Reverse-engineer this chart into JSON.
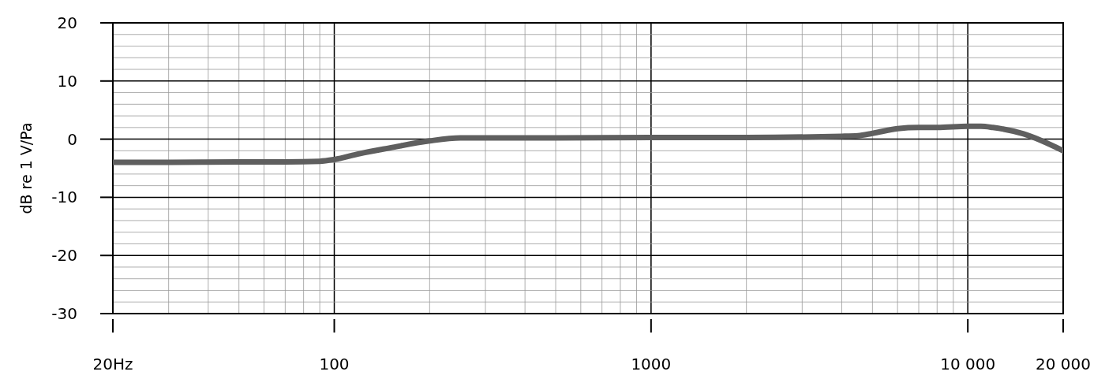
{
  "chart_data": {
    "type": "line",
    "ylabel": "dB re 1 V/Pa",
    "log": "x",
    "grid": true,
    "xlim": [
      20,
      20000
    ],
    "ylim": [
      -30,
      20
    ],
    "xticks": [
      {
        "value": 20,
        "label": "20Hz"
      },
      100,
      1000,
      {
        "value": 10000,
        "label": "10 000"
      },
      {
        "value": 20000,
        "label": "20 000"
      }
    ],
    "yticks": [
      -30,
      -20,
      -10,
      0,
      10,
      20
    ],
    "series": [
      {
        "color": "#5f5f5f",
        "x": [
          20,
          30,
          50,
          70,
          90,
          100,
          120,
          150,
          200,
          250,
          300,
          500,
          1000,
          2000,
          4000,
          4500,
          5000,
          6000,
          7000,
          8000,
          10000,
          11000,
          12000,
          15000,
          20000
        ],
        "values": [
          -4,
          -4,
          -3.9,
          -3.9,
          -3.8,
          -3.5,
          -2.5,
          -1.5,
          -0.3,
          0.2,
          0.2,
          0.2,
          0.3,
          0.3,
          0.5,
          0.6,
          1,
          1.8,
          2,
          2,
          2.2,
          2.2,
          2,
          0.9,
          -2
        ]
      }
    ]
  }
}
